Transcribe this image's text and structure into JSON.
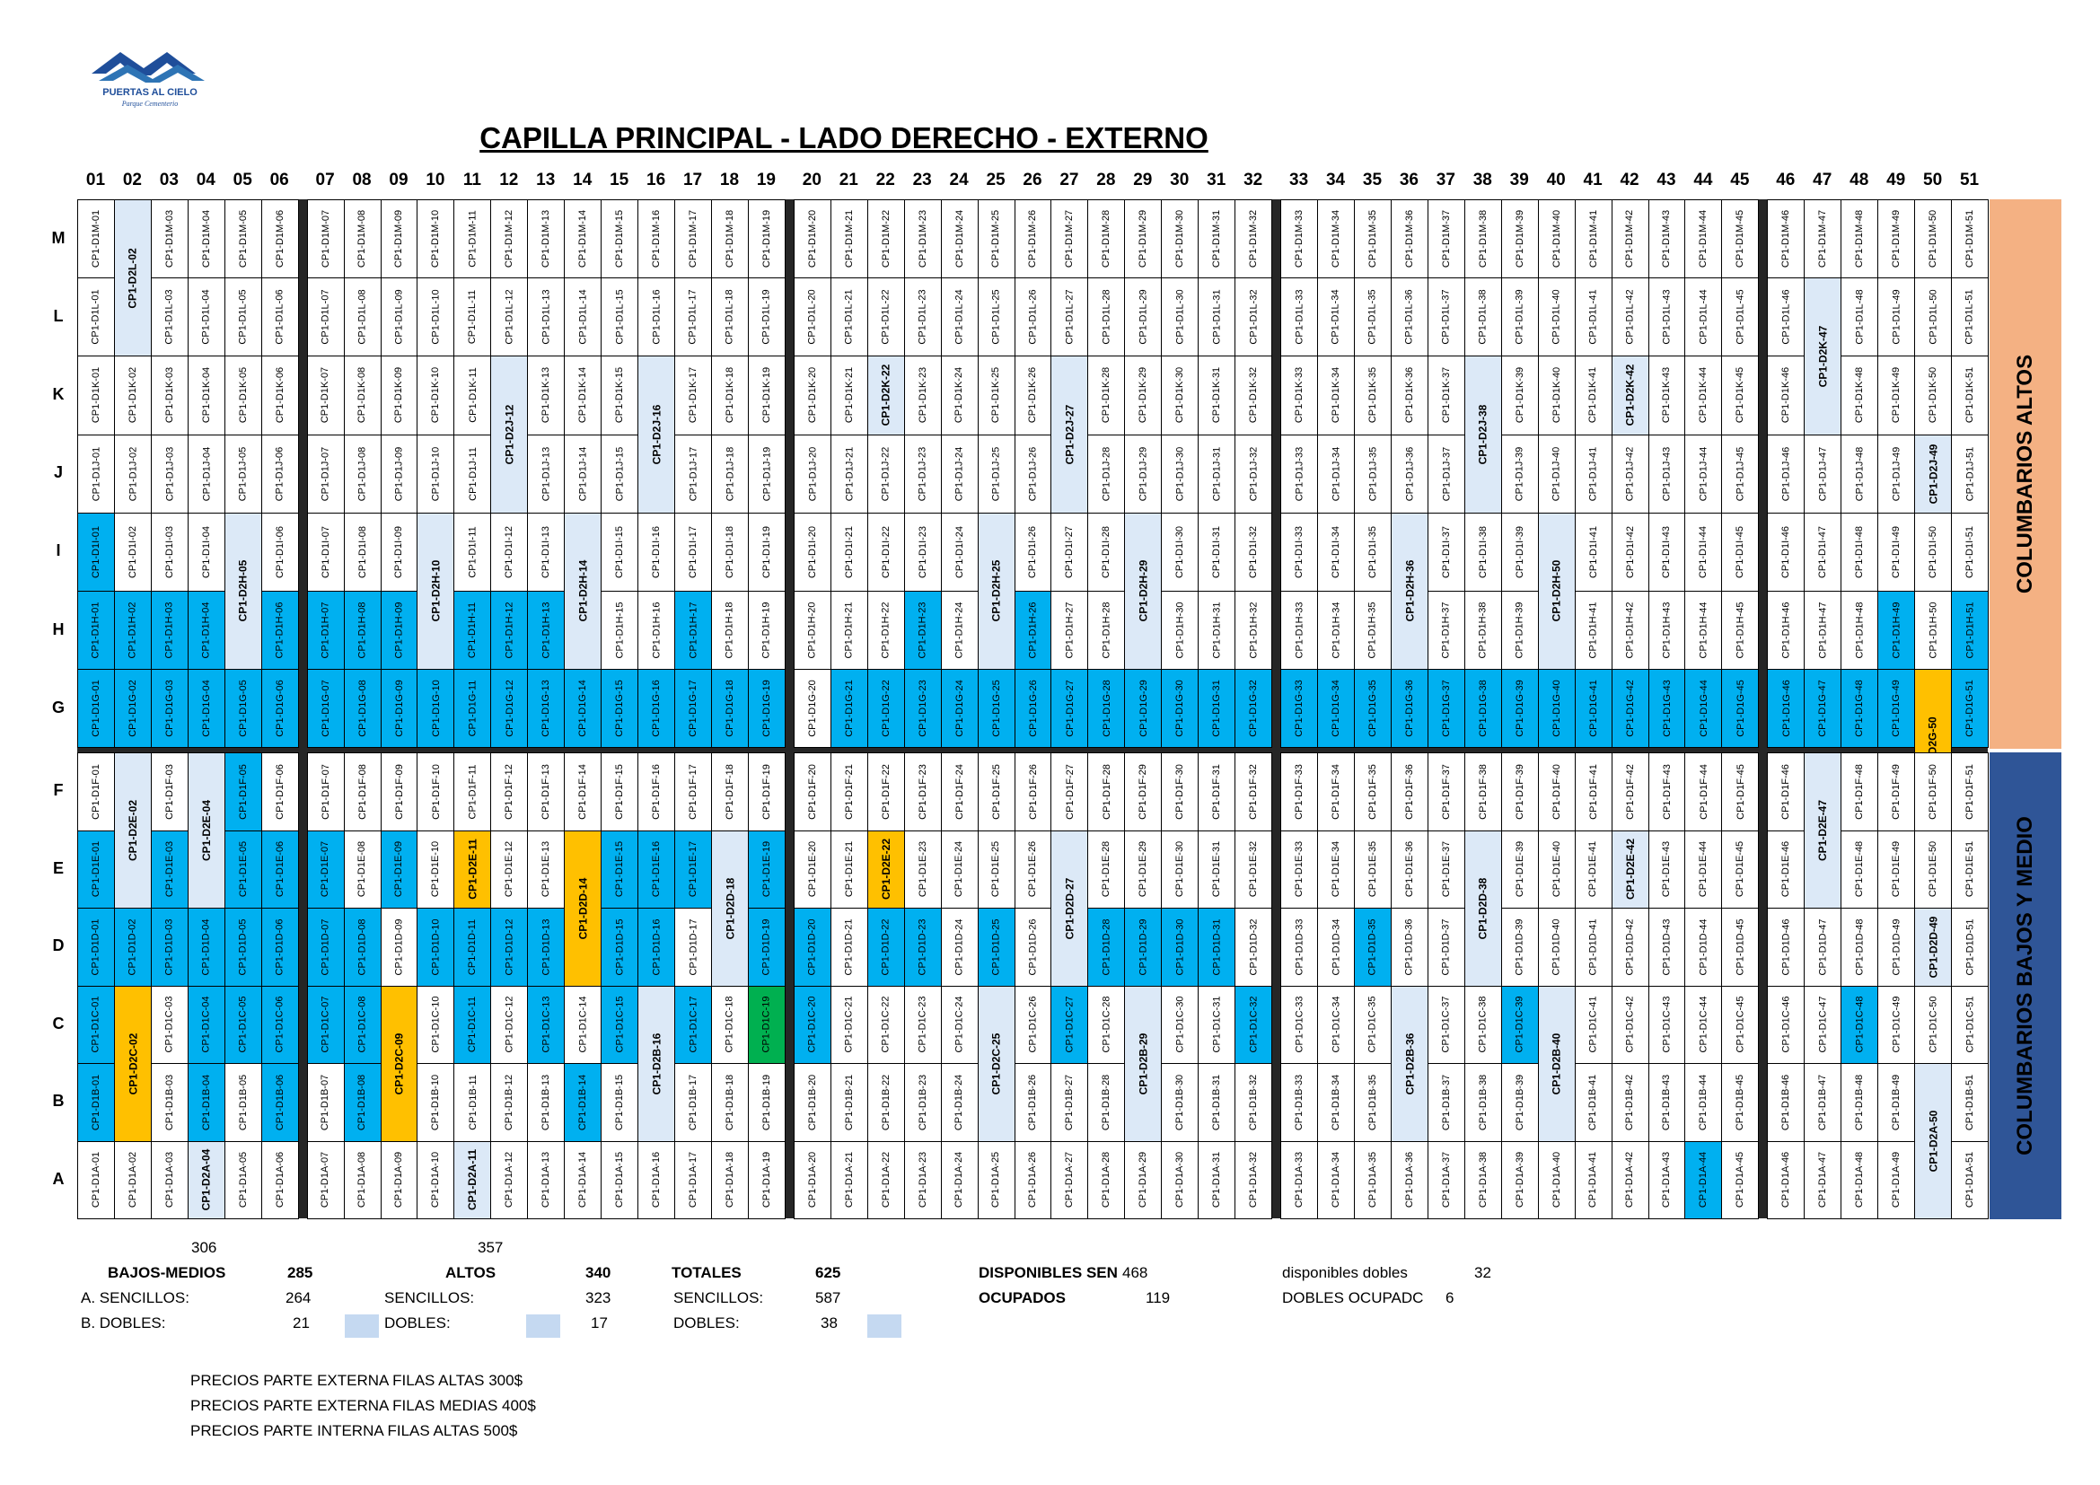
{
  "title": "CAPILLA PRINCIPAL - LADO DERECHO - EXTERNO",
  "logo": {
    "brand": "PUERTAS AL CIELO",
    "tagline": "Parque Cementerio"
  },
  "columns": [
    "01",
    "02",
    "03",
    "04",
    "05",
    "06",
    "07",
    "08",
    "09",
    "10",
    "11",
    "12",
    "13",
    "14",
    "15",
    "16",
    "17",
    "18",
    "19",
    "20",
    "21",
    "22",
    "23",
    "24",
    "25",
    "26",
    "27",
    "28",
    "29",
    "30",
    "31",
    "32",
    "33",
    "34",
    "35",
    "36",
    "37",
    "38",
    "39",
    "40",
    "41",
    "42",
    "43",
    "44",
    "45",
    "46",
    "47",
    "48",
    "49",
    "50",
    "51"
  ],
  "section_labels": {
    "upper": "COLUMBARIOS ALTOS",
    "lower": "COLUMBARIOS BAJOS Y MEDIO"
  },
  "colors": {
    "available": "#ffffff",
    "occupied": "#00b0f0",
    "double": "#dce9f7",
    "double_occupied": "#ffc000",
    "special": "#00b050",
    "upper_band": "#f4b183",
    "lower_band": "#2f5597"
  },
  "summary": {
    "bajos_medios": {
      "top": "306",
      "label": "BAJOS-MEDIOS",
      "total": "285",
      "sencillos_label": "A. SENCILLOS:",
      "sencillos": "264",
      "dobles_label": "B. DOBLES:",
      "dobles": "21"
    },
    "altos": {
      "top": "357",
      "label": "ALTOS",
      "total": "340",
      "sencillos_label": "SENCILLOS:",
      "sencillos": "323",
      "dobles_label": "DOBLES:",
      "dobles": "17"
    },
    "totales": {
      "label": "TOTALES",
      "total": "625",
      "sencillos_label": "SENCILLOS:",
      "sencillos": "587",
      "dobles_label": "DOBLES:",
      "dobles": "38"
    },
    "disponibles": {
      "label": "DISPONIBLES SEN",
      "value": "468",
      "ocupados_label": "OCUPADOS",
      "ocupados": "119"
    },
    "dobles_info": {
      "disp_label": "disponibles dobles",
      "disp": "32",
      "ocup_label": "DOBLES OCUPADC",
      "ocup": "6"
    }
  },
  "prices": [
    "PRECIOS  PARTE EXTERNA FILAS ALTAS 300$",
    "PRECIOS  PARTE EXTERNA FILAS MEDIAS 400$",
    "PRECIOS  PARTE INTERNA FILAS ALTAS 500$"
  ],
  "rows": [
    {
      "r": "M",
      "singles": {
        "b": [],
        "o": []
      },
      "doubles": [
        [
          2,
          "CP1-D2L-02",
          2
        ]
      ]
    },
    {
      "r": "L",
      "singles": {
        "b": [],
        "o": []
      },
      "doubles": [
        [
          47,
          "CP1-D2K-47",
          2
        ]
      ]
    },
    {
      "r": "K",
      "singles": {
        "b": [],
        "o": []
      },
      "doubles": [
        [
          12,
          "CP1-D2J-12",
          2
        ],
        [
          16,
          "CP1-D2J-16",
          2
        ],
        [
          22,
          "CP1-D2K-22",
          1
        ],
        [
          27,
          "CP1-D2J-27",
          2
        ],
        [
          38,
          "CP1-D2J-38",
          2
        ],
        [
          42,
          "CP1-D2K-42",
          1
        ]
      ]
    },
    {
      "r": "J",
      "singles": {
        "b": [],
        "o": []
      },
      "doubles": [
        [
          50,
          "CP1-D2J-49",
          1
        ]
      ]
    },
    {
      "r": "I",
      "singles": {
        "b": [
          1
        ],
        "o": []
      },
      "doubles": [
        [
          5,
          "CP1-D2H-05",
          2
        ],
        [
          10,
          "CP1-D2H-10",
          2
        ],
        [
          14,
          "CP1-D2H-14",
          2
        ],
        [
          25,
          "CP1-D2H-25",
          2
        ],
        [
          29,
          "CP1-D2H-29",
          2
        ],
        [
          36,
          "CP1-D2H-36",
          2
        ],
        [
          40,
          "CP1-D2H-50",
          2
        ]
      ]
    },
    {
      "r": "H",
      "singles": {
        "b": [
          1,
          2,
          3,
          4,
          6,
          7,
          8,
          9,
          11,
          12,
          13,
          17,
          23,
          26,
          49,
          51
        ],
        "o": []
      },
      "doubles": []
    },
    {
      "r": "G",
      "singles": {
        "b": [
          1,
          2,
          3,
          4,
          5,
          6,
          7,
          8,
          9,
          10,
          11,
          12,
          13,
          14,
          15,
          16,
          17,
          18,
          19,
          21,
          22,
          23,
          24,
          25,
          26,
          27,
          28,
          29,
          30,
          31,
          32,
          33,
          34,
          35,
          36,
          37,
          38,
          39,
          40,
          41,
          42,
          43,
          44,
          45,
          46,
          47,
          48,
          49,
          51
        ],
        "o": []
      },
      "doubles": [
        [
          50,
          "CP1-D2G-50",
          2,
          "orange"
        ]
      ]
    },
    {
      "r": "F",
      "singles": {
        "b": [
          5
        ],
        "o": []
      },
      "doubles": [
        [
          2,
          "CP1-D2E-02",
          2
        ],
        [
          4,
          "CP1-D2E-04",
          2
        ],
        [
          47,
          "CP1-D2E-47",
          2
        ]
      ]
    },
    {
      "r": "E",
      "singles": {
        "b": [
          1,
          3,
          5,
          6,
          7,
          9,
          15,
          16,
          17,
          19
        ],
        "o": []
      },
      "doubles": [
        [
          11,
          "CP1-D2E-11",
          1,
          "orange"
        ],
        [
          14,
          "CP1-D2D-14",
          2,
          "orange"
        ],
        [
          18,
          "CP1-D2D-18",
          2
        ],
        [
          22,
          "CP1-D2E-22",
          1,
          "orange"
        ],
        [
          27,
          "CP1-D2D-27",
          2
        ],
        [
          38,
          "CP1-D2D-38",
          2
        ],
        [
          42,
          "CP1-D2E-42",
          1
        ]
      ]
    },
    {
      "r": "D",
      "singles": {
        "b": [
          1,
          2,
          3,
          4,
          5,
          6,
          7,
          8,
          10,
          11,
          12,
          13,
          15,
          16,
          19,
          20,
          22,
          23,
          25,
          28,
          29,
          30,
          31,
          35
        ],
        "o": []
      },
      "doubles": [
        [
          50,
          "CP1-D2D-49",
          1
        ]
      ]
    },
    {
      "r": "C",
      "singles": {
        "b": [
          1,
          4,
          5,
          6,
          7,
          8,
          11,
          13,
          15,
          17,
          20,
          27,
          32,
          39,
          48
        ],
        "o": []
      },
      "doubles": [
        [
          2,
          "CP1-D2C-02",
          2,
          "orange"
        ],
        [
          9,
          "CP1-D2C-09",
          2,
          "orange"
        ],
        [
          16,
          "CP1-D2B-16",
          2
        ],
        [
          25,
          "CP1-D2C-25",
          2
        ],
        [
          29,
          "CP1-D2B-29",
          2
        ],
        [
          36,
          "CP1-D2B-36",
          2
        ],
        [
          40,
          "CP1-D2B-40",
          2
        ]
      ],
      "green": [
        19
      ]
    },
    {
      "r": "B",
      "singles": {
        "b": [
          1,
          2,
          4,
          6,
          8,
          14
        ],
        "o": []
      },
      "doubles": [
        [
          50,
          "CP1-D2A-50",
          2
        ]
      ]
    },
    {
      "r": "A",
      "singles": {
        "b": [
          44
        ],
        "o": []
      },
      "doubles": [
        [
          4,
          "CP1-D2A-04",
          2
        ],
        [
          11,
          "CP1-D2A-11",
          2
        ]
      ]
    }
  ]
}
